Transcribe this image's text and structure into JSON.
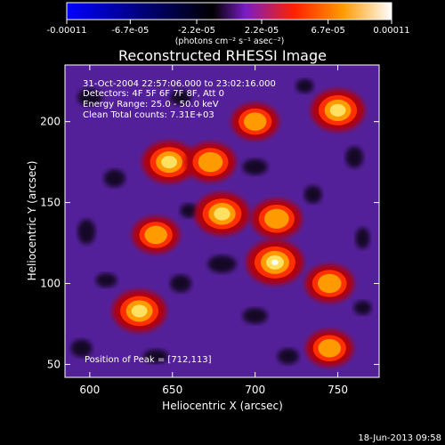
{
  "colorbar": {
    "min": -0.00011,
    "max": 0.00011,
    "tick_labels": [
      "-0.00011",
      "-6.7e-05",
      "-2.2e-05",
      "2.2e-05",
      "6.7e-05",
      "0.00011"
    ],
    "tick_values": [
      -0.00011,
      -6.7e-05,
      -2.2e-05,
      2.2e-05,
      6.7e-05,
      0.00011
    ],
    "unit_label": "(photons cm⁻² s⁻¹ asec⁻²)",
    "colors": [
      "#0000ff",
      "#000000",
      "#7a1cc6",
      "#ff2000",
      "#ff9a00",
      "#ffffff"
    ]
  },
  "chart_data": {
    "type": "heatmap",
    "title": "Reconstructed RHESSI Image",
    "xlabel": "Heliocentric X (arcsec)",
    "ylabel": "Heliocentric Y (arcsec)",
    "xlim": [
      585,
      775
    ],
    "ylim": [
      42,
      235
    ],
    "xticks": [
      600,
      650,
      700,
      750
    ],
    "yticks": [
      50,
      100,
      150,
      200
    ],
    "annotations": [
      "31-Oct-2004 22:57:06.000 to 23:02:16.000",
      "Detectors: 4F 5F 6F 7F 8F, Att 0",
      "Energy Range: 25.0 - 50.0 keV",
      "Clean    Total counts: 7.31E+03"
    ],
    "peak_label": "Position of Peak = [712,113]",
    "peak": {
      "x": 712,
      "y": 113
    },
    "bright_sources": [
      {
        "x": 712,
        "y": 113,
        "value": 0.00011
      },
      {
        "x": 680,
        "y": 143,
        "value": 9.5e-05
      },
      {
        "x": 648,
        "y": 175,
        "value": 9e-05
      },
      {
        "x": 630,
        "y": 83,
        "value": 9e-05
      },
      {
        "x": 750,
        "y": 207,
        "value": 9e-05
      },
      {
        "x": 673,
        "y": 175,
        "value": 7e-05
      },
      {
        "x": 713,
        "y": 140,
        "value": 7e-05
      },
      {
        "x": 745,
        "y": 100,
        "value": 6e-05
      },
      {
        "x": 745,
        "y": 60,
        "value": 5e-05
      },
      {
        "x": 700,
        "y": 200,
        "value": 5e-05
      },
      {
        "x": 640,
        "y": 130,
        "value": 5e-05
      }
    ],
    "grid": false
  },
  "footer": {
    "date": "18-Jun-2013 09:58"
  }
}
